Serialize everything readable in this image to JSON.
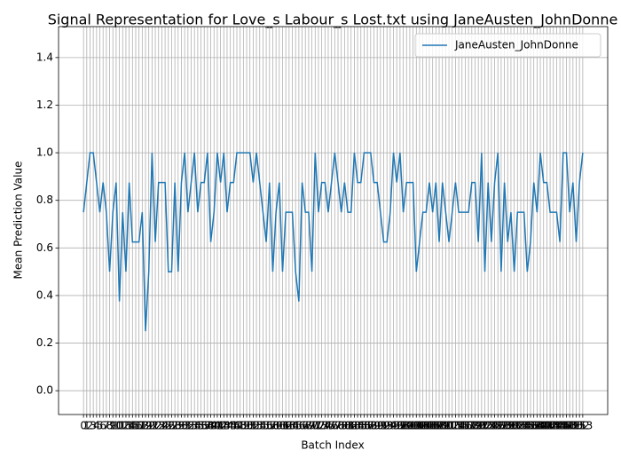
{
  "chart_data": {
    "type": "line",
    "title": "Signal Representation for Love_s Labour_s Lost.txt using JaneAusten_JohnDonne",
    "x_label": "Batch Index",
    "y_label": "Mean Prediction Value",
    "categories": [
      "0",
      "1",
      "2",
      "3",
      "4",
      "5",
      "6",
      "7",
      "8",
      "9",
      "10",
      "11",
      "12",
      "13",
      "14",
      "15",
      "16",
      "17",
      "18",
      "19",
      "20",
      "21",
      "22",
      "23",
      "24",
      "25",
      "26",
      "27",
      "28",
      "29",
      "30",
      "31",
      "32",
      "33",
      "34",
      "35",
      "36",
      "37",
      "38",
      "39",
      "40",
      "41",
      "42",
      "43",
      "44",
      "45",
      "46",
      "47",
      "48",
      "49",
      "50",
      "51",
      "52",
      "53",
      "54",
      "55",
      "56",
      "57",
      "58",
      "59",
      "60",
      "61",
      "62",
      "63",
      "64",
      "65",
      "66",
      "67",
      "68",
      "69",
      "70",
      "71",
      "72",
      "73",
      "74",
      "75",
      "76",
      "77",
      "78",
      "79",
      "80",
      "81",
      "82",
      "83",
      "84",
      "85",
      "86",
      "87",
      "88",
      "89",
      "90",
      "91",
      "92",
      "93",
      "94",
      "95",
      "96",
      "97",
      "98",
      "99",
      "100",
      "101",
      "102",
      "103",
      "104",
      "105",
      "106",
      "107",
      "108",
      "109",
      "110",
      "111",
      "112",
      "113",
      "114",
      "115",
      "116",
      "117",
      "118",
      "119",
      "120",
      "121",
      "122",
      "123",
      "124",
      "125",
      "126",
      "127",
      "128",
      "129",
      "130",
      "131",
      "132",
      "133",
      "134",
      "135",
      "136",
      "137",
      "138",
      "139",
      "140",
      "141",
      "142",
      "143",
      "144",
      "145",
      "146",
      "147",
      "148",
      "149",
      "150",
      "151",
      "152",
      "153"
    ],
    "series": [
      {
        "name": "JaneAusten_JohnDonne",
        "color": "#1f77b4",
        "values": [
          0.75,
          0.875,
          1,
          1,
          0.875,
          0.75,
          0.875,
          0.75,
          0.5,
          0.75,
          0.875,
          0.375,
          0.75,
          0.5,
          0.875,
          0.625,
          0.625,
          0.625,
          0.75,
          0.25,
          0.5,
          1,
          0.625,
          0.875,
          0.875,
          0.875,
          0.5,
          0.5,
          0.875,
          0.5,
          0.875,
          1,
          0.75,
          0.875,
          1,
          0.75,
          0.875,
          0.875,
          1,
          0.625,
          0.75,
          1,
          0.875,
          1,
          0.75,
          0.875,
          0.875,
          1,
          1,
          1,
          1,
          1,
          0.875,
          1,
          0.875,
          0.75,
          0.625,
          0.875,
          0.5,
          0.75,
          0.875,
          0.5,
          0.75,
          0.75,
          0.75,
          0.5,
          0.375,
          0.875,
          0.75,
          0.75,
          0.5,
          1,
          0.75,
          0.875,
          0.875,
          0.75,
          0.875,
          1,
          0.875,
          0.75,
          0.875,
          0.75,
          0.75,
          1,
          0.875,
          0.875,
          1,
          1,
          1,
          0.875,
          0.875,
          0.75,
          0.625,
          0.625,
          0.75,
          1,
          0.875,
          1,
          0.75,
          0.875,
          0.875,
          0.875,
          0.5,
          0.625,
          0.75,
          0.75,
          0.875,
          0.75,
          0.875,
          0.625,
          0.875,
          0.75,
          0.625,
          0.75,
          0.875,
          0.75,
          0.75,
          0.75,
          0.75,
          0.875,
          0.875,
          0.625,
          1,
          0.5,
          0.875,
          0.625,
          0.875,
          1,
          0.5,
          0.875,
          0.625,
          0.75,
          0.5,
          0.75,
          0.75,
          0.75,
          0.5,
          0.625,
          0.875,
          0.75,
          1,
          0.875,
          0.875,
          0.75,
          0.75,
          0.75,
          0.625,
          1,
          1,
          0.75,
          0.875,
          0.625,
          0.875,
          1
        ]
      }
    ],
    "xlim": [
      -7.65,
      160.65
    ],
    "ylim": [
      -0.1,
      1.53
    ],
    "yticks": [
      {
        "value": 0,
        "label": "0.0"
      },
      {
        "value": 0.2,
        "label": "0.2"
      },
      {
        "value": 0.4,
        "label": "0.4"
      },
      {
        "value": 0.6,
        "label": "0.6"
      },
      {
        "value": 0.8,
        "label": "0.8"
      },
      {
        "value": 1,
        "label": "1.0"
      },
      {
        "value": 1.2,
        "label": "1.2"
      },
      {
        "value": 1.4,
        "label": "1.4"
      }
    ],
    "grid": true,
    "legend": "upper right"
  }
}
